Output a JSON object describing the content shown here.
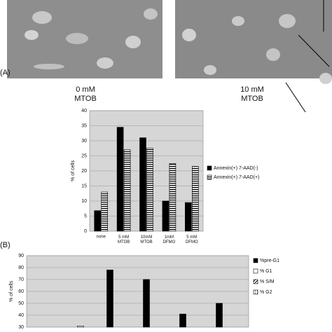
{
  "figure": {
    "panel_labels": [
      "(A)",
      "(B)"
    ],
    "captions": [
      [
        "0 mM",
        "MTOB"
      ],
      [
        "10 mM",
        "MTOB"
      ]
    ]
  },
  "chart_data": [
    {
      "type": "bar",
      "y_label": "% of cells",
      "categories": [
        "none",
        "5 mM\nMTOB",
        "10mM\nMTOB",
        "1mM\nDFMO",
        "5 mM\nDFMO"
      ],
      "series": [
        {
          "name": "Annexin(+) 7-AAD(-)",
          "color": "#000000",
          "pattern": "solid",
          "values": [
            6.8,
            34.5,
            31,
            10,
            9.5
          ]
        },
        {
          "name": "Annexin(+) 7-AAD(+)",
          "color": "#000000",
          "pattern": "hstripe",
          "values": [
            13,
            27,
            27.5,
            22.5,
            21.5
          ]
        }
      ],
      "ylim": [
        0,
        40
      ],
      "yticks": [
        0,
        5,
        10,
        15,
        20,
        25,
        30,
        35,
        40
      ],
      "legend": "right"
    },
    {
      "type": "bar",
      "y_label": "% of cells",
      "categories": [
        null,
        null,
        null,
        null,
        null
      ],
      "series": [
        {
          "name": "%pre-G1",
          "color": "#000000",
          "pattern": "solid",
          "values": [
            null,
            78,
            70,
            41,
            50
          ]
        },
        {
          "name": "% G1",
          "color": "#ffffff",
          "pattern": "solid",
          "values": [
            31,
            null,
            null,
            null,
            null
          ]
        },
        {
          "name": "% S/M",
          "color": "#000000",
          "pattern": "dstripe",
          "values": [
            null,
            null,
            null,
            null,
            null
          ]
        },
        {
          "name": "% G2",
          "color": "#000000",
          "pattern": "dots",
          "values": [
            null,
            null,
            null,
            null,
            null
          ]
        }
      ],
      "ylim": [
        30,
        90
      ],
      "yticks": [
        30,
        40,
        50,
        60,
        70,
        80,
        90
      ],
      "legend": "right"
    }
  ]
}
